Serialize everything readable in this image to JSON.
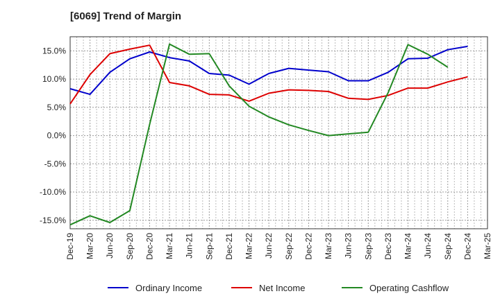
{
  "chart_data": {
    "type": "line",
    "title": "[6069]  Trend of Margin",
    "xlabel": "",
    "ylabel": "",
    "x_tick_labels": [
      "Dec-19",
      "Mar-20",
      "Jun-20",
      "Sep-20",
      "Dec-20",
      "Mar-21",
      "Jun-21",
      "Sep-21",
      "Dec-21",
      "Mar-22",
      "Jun-22",
      "Sep-22",
      "Dec-22",
      "Mar-23",
      "Jun-23",
      "Sep-23",
      "Dec-23",
      "Mar-24",
      "Jun-24",
      "Sep-24",
      "Dec-24",
      "Mar-25"
    ],
    "y_tick_labels": [
      "15.0%",
      "10.0%",
      "5.0%",
      "0.0%",
      "-5.0%",
      "-10.0%",
      "-15.0%"
    ],
    "y_tick_values": [
      15,
      10,
      5,
      0,
      -5,
      -10,
      -15
    ],
    "ylim": [
      -16.5,
      17.5
    ],
    "grid": true,
    "legend_position": "bottom",
    "series": [
      {
        "name": "Ordinary Income",
        "color": "#0000cc",
        "values": [
          8.3,
          7.3,
          11.2,
          13.6,
          14.8,
          13.8,
          13.2,
          11.0,
          10.7,
          9.1,
          11.0,
          11.9,
          11.6,
          11.3,
          9.7,
          9.7,
          11.2,
          13.6,
          13.7,
          15.2,
          15.8,
          null
        ]
      },
      {
        "name": "Net Income",
        "color": "#dd0000",
        "values": [
          5.6,
          10.8,
          14.5,
          15.3,
          16.0,
          9.4,
          8.8,
          7.3,
          7.2,
          6.1,
          7.5,
          8.1,
          8.0,
          7.8,
          6.6,
          6.4,
          7.1,
          8.4,
          8.4,
          9.5,
          10.4,
          null
        ]
      },
      {
        "name": "Operating Cashflow",
        "color": "#228822",
        "values": [
          -15.8,
          -14.2,
          -15.4,
          -13.3,
          2.0,
          16.2,
          14.4,
          14.5,
          8.8,
          5.2,
          3.3,
          1.9,
          0.9,
          0.0,
          0.3,
          0.6,
          7.6,
          16.1,
          14.4,
          12.1,
          null,
          null
        ]
      }
    ]
  }
}
